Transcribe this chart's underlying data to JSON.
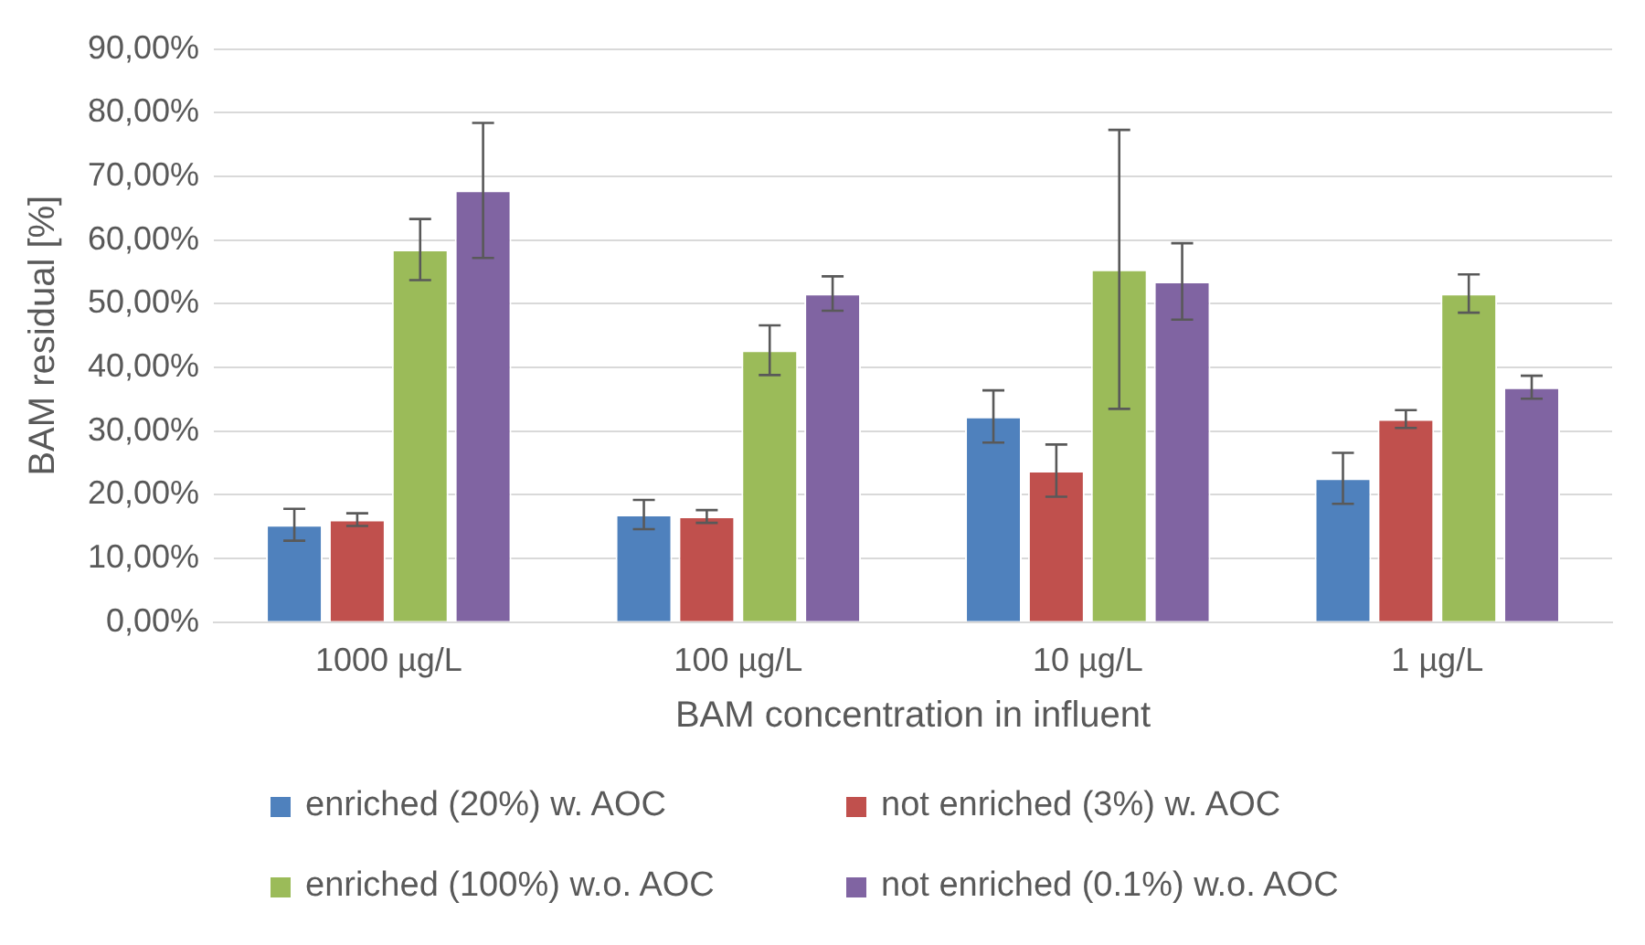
{
  "chart_data": {
    "type": "bar",
    "xlabel": "BAM concentration in influent",
    "ylabel": "BAM residual [%]",
    "categories": [
      "1000 µg/L",
      "100 µg/L",
      "10 µg/L",
      "1 µg/L"
    ],
    "ylim": [
      0,
      90
    ],
    "yticks": [
      {
        "value": 0,
        "label": "0,00%"
      },
      {
        "value": 10,
        "label": "10,00%"
      },
      {
        "value": 20,
        "label": "20,00%"
      },
      {
        "value": 30,
        "label": "30,00%"
      },
      {
        "value": 40,
        "label": "40,00%"
      },
      {
        "value": 50,
        "label": "50,00%"
      },
      {
        "value": 60,
        "label": "60,00%"
      },
      {
        "value": 70,
        "label": "70,00%"
      },
      {
        "value": 80,
        "label": "80,00%"
      },
      {
        "value": 90,
        "label": "90,00%"
      }
    ],
    "grid": "y",
    "legend": "bottom",
    "series": [
      {
        "name": "enriched (20%) w. AOC",
        "color": "#4f81bd",
        "values": [
          15.3,
          16.9,
          32.3,
          22.6
        ],
        "errors": [
          2.5,
          2.3,
          4.1,
          4.0
        ]
      },
      {
        "name": "not enriched (3%) w. AOC",
        "color": "#c0504d",
        "values": [
          16.1,
          16.6,
          23.8,
          31.9
        ],
        "errors": [
          1.0,
          1.0,
          4.1,
          1.4
        ]
      },
      {
        "name": "enriched (100%) w.o. AOC",
        "color": "#9bbb59",
        "values": [
          58.5,
          42.7,
          55.4,
          51.6
        ],
        "errors": [
          4.8,
          3.9,
          21.9,
          3.0
        ]
      },
      {
        "name": "not enriched (0.1%) w.o. AOC",
        "color": "#8064a2",
        "values": [
          67.8,
          51.6,
          53.5,
          36.9
        ],
        "errors": [
          10.6,
          2.7,
          6.0,
          1.8
        ]
      }
    ]
  }
}
